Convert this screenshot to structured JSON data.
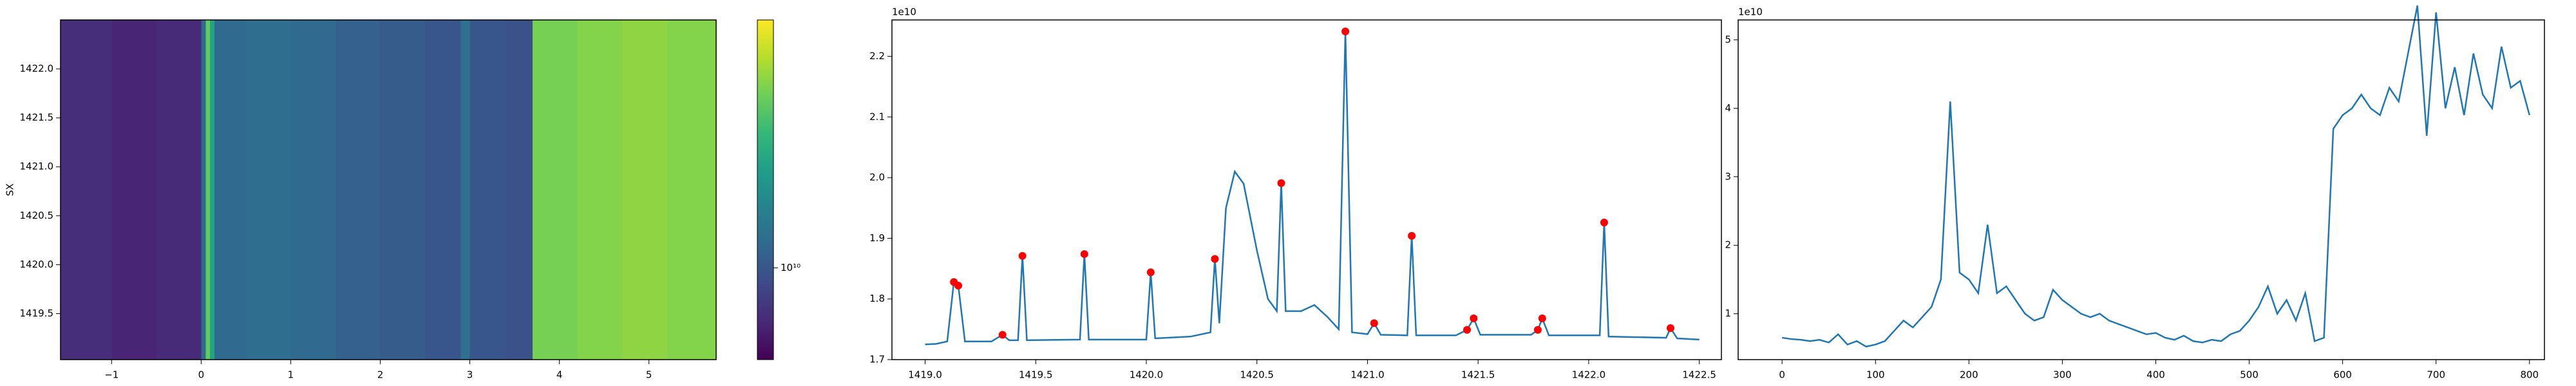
{
  "chart_data": [
    {
      "type": "heatmap",
      "y_label": "SX",
      "x_edges": [
        -1.57,
        -1.0,
        -0.5,
        0,
        0.05,
        0.1,
        0.15,
        0.5,
        1.0,
        1.5,
        2.0,
        2.5,
        2.9,
        3.0,
        3.4,
        3.7,
        4.2,
        4.7,
        5.2,
        5.75
      ],
      "values": [
        7000000000.0,
        6500000000.0,
        6800000000.0,
        12000000000.0,
        35000000000.0,
        22000000000.0,
        12000000000.0,
        12500000000.0,
        12000000000.0,
        11000000000.0,
        10500000000.0,
        10000000000.0,
        13000000000.0,
        10000000000.0,
        9500000000.0,
        38000000000.0,
        40000000000.0,
        42000000000.0,
        40000000000.0
      ],
      "xlim": [
        -1.57,
        5.75
      ],
      "xticks": [
        {
          "value": -1,
          "label": "−1"
        },
        0,
        1,
        2,
        3,
        4,
        5
      ],
      "ylim": [
        1419.03,
        1422.5
      ],
      "yticks": [
        {
          "value": 1419.5,
          "label": "1419.5"
        },
        {
          "value": 1420.0,
          "label": "1420.0"
        },
        {
          "value": 1420.5,
          "label": "1420.5"
        },
        {
          "value": 1421.0,
          "label": "1421.0"
        },
        {
          "value": 1421.5,
          "label": "1421.5"
        },
        {
          "value": 1422.0,
          "label": "1422.0"
        }
      ],
      "colormap": "viridis",
      "colorbar": {
        "log": true,
        "lim": [
          5000000000.0,
          65000000000.0
        ],
        "ticks": [
          {
            "value": 10000000000.0,
            "label": "10¹⁰"
          }
        ]
      }
    },
    {
      "type": "line",
      "color": "#1f77b4",
      "x": [
        1419.0,
        1419.05,
        1419.1,
        1419.13,
        1419.15,
        1419.18,
        1419.3,
        1419.35,
        1419.38,
        1419.42,
        1419.44,
        1419.46,
        1419.7,
        1419.72,
        1419.74,
        1420.0,
        1420.02,
        1420.04,
        1420.2,
        1420.29,
        1420.31,
        1420.33,
        1420.36,
        1420.4,
        1420.44,
        1420.5,
        1420.55,
        1420.59,
        1420.61,
        1420.63,
        1420.7,
        1420.76,
        1420.82,
        1420.87,
        1420.9,
        1420.93,
        1421.0,
        1421.03,
        1421.06,
        1421.18,
        1421.2,
        1421.22,
        1421.4,
        1421.45,
        1421.48,
        1421.51,
        1421.74,
        1421.77,
        1421.79,
        1421.82,
        1422.05,
        1422.07,
        1422.09,
        1422.35,
        1422.37,
        1422.4,
        1422.5
      ],
      "values": [
        17250000000.0,
        17260000000.0,
        17300000000.0,
        18280000000.0,
        18220000000.0,
        17300000000.0,
        17300000000.0,
        17410000000.0,
        17320000000.0,
        17320000000.0,
        18710000000.0,
        17320000000.0,
        17330000000.0,
        18740000000.0,
        17330000000.0,
        17330000000.0,
        18440000000.0,
        17350000000.0,
        17380000000.0,
        17450000000.0,
        18660000000.0,
        17600000000.0,
        19500000000.0,
        20100000000.0,
        19900000000.0,
        18800000000.0,
        18000000000.0,
        17800000000.0,
        19910000000.0,
        17800000000.0,
        17800000000.0,
        17900000000.0,
        17700000000.0,
        17500000000.0,
        22410000000.0,
        17450000000.0,
        17420000000.0,
        17600000000.0,
        17410000000.0,
        17400000000.0,
        19040000000.0,
        17400000000.0,
        17400000000.0,
        17490000000.0,
        17680000000.0,
        17410000000.0,
        17410000000.0,
        17490000000.0,
        17680000000.0,
        17400000000.0,
        17400000000.0,
        19260000000.0,
        17380000000.0,
        17360000000.0,
        17520000000.0,
        17350000000.0,
        17330000000.0
      ],
      "markers": {
        "color": "red",
        "x": [
          1419.13,
          1419.15,
          1419.35,
          1419.44,
          1419.72,
          1420.02,
          1420.31,
          1420.61,
          1420.9,
          1421.03,
          1421.2,
          1421.45,
          1421.48,
          1421.77,
          1421.79,
          1422.07,
          1422.37
        ],
        "values": [
          18280000000.0,
          18220000000.0,
          17410000000.0,
          18710000000.0,
          18740000000.0,
          18440000000.0,
          18660000000.0,
          19910000000.0,
          22410000000.0,
          17600000000.0,
          19040000000.0,
          17490000000.0,
          17680000000.0,
          17490000000.0,
          17680000000.0,
          19260000000.0,
          17520000000.0
        ]
      },
      "xlim": [
        1418.85,
        1422.6
      ],
      "xticks": [
        {
          "value": 1419.0,
          "label": "1419.0"
        },
        {
          "value": 1419.5,
          "label": "1419.5"
        },
        {
          "value": 1420.0,
          "label": "1420.0"
        },
        {
          "value": 1420.5,
          "label": "1420.5"
        },
        {
          "value": 1421.0,
          "label": "1421.0"
        },
        {
          "value": 1421.5,
          "label": "1421.5"
        },
        {
          "value": 1422.0,
          "label": "1422.0"
        },
        {
          "value": 1422.5,
          "label": "1422.5"
        }
      ],
      "ylim": [
        17000000000.0,
        22600000000.0
      ],
      "yticks": [
        {
          "value": 17000000000.0,
          "label": "1.7"
        },
        {
          "value": 18000000000.0,
          "label": "1.8"
        },
        {
          "value": 19000000000.0,
          "label": "1.9"
        },
        {
          "value": 20000000000.0,
          "label": "2.0"
        },
        {
          "value": 21000000000.0,
          "label": "2.1"
        },
        {
          "value": 22000000000.0,
          "label": "2.2"
        }
      ],
      "y_offset_label": "1e10"
    },
    {
      "type": "line",
      "color": "#1f77b4",
      "x": [
        0,
        10,
        20,
        30,
        40,
        50,
        60,
        70,
        80,
        90,
        100,
        110,
        120,
        130,
        140,
        150,
        160,
        170,
        180,
        190,
        200,
        210,
        220,
        230,
        240,
        250,
        260,
        270,
        280,
        290,
        300,
        310,
        320,
        330,
        340,
        350,
        360,
        370,
        380,
        390,
        400,
        410,
        420,
        430,
        440,
        450,
        460,
        470,
        480,
        490,
        500,
        510,
        520,
        530,
        540,
        550,
        560,
        570,
        580,
        590,
        600,
        610,
        620,
        630,
        640,
        650,
        660,
        670,
        680,
        690,
        700,
        710,
        720,
        730,
        740,
        750,
        760,
        770,
        780,
        790,
        800
      ],
      "values": [
        6500000000.0,
        6300000000.0,
        6200000000.0,
        6000000000.0,
        6200000000.0,
        5800000000.0,
        7000000000.0,
        5500000000.0,
        6000000000.0,
        5200000000.0,
        5500000000.0,
        6000000000.0,
        7500000000.0,
        9000000000.0,
        8000000000.0,
        9500000000.0,
        11000000000.0,
        15000000000.0,
        41000000000.0,
        16000000000.0,
        15000000000.0,
        13000000000.0,
        23000000000.0,
        13000000000.0,
        14000000000.0,
        12000000000.0,
        10000000000.0,
        9000000000.0,
        9500000000.0,
        13500000000.0,
        12000000000.0,
        11000000000.0,
        10000000000.0,
        9500000000.0,
        10000000000.0,
        9000000000.0,
        8500000000.0,
        8000000000.0,
        7500000000.0,
        7000000000.0,
        7200000000.0,
        6500000000.0,
        6200000000.0,
        6800000000.0,
        6000000000.0,
        5800000000.0,
        6200000000.0,
        6000000000.0,
        7000000000.0,
        7500000000.0,
        9000000000.0,
        11000000000.0,
        14000000000.0,
        10000000000.0,
        12000000000.0,
        9000000000.0,
        13000000000.0,
        6000000000.0,
        6500000000.0,
        37000000000.0,
        39000000000.0,
        40000000000.0,
        42000000000.0,
        40000000000.0,
        39000000000.0,
        43000000000.0,
        41000000000.0,
        48000000000.0,
        55000000000.0,
        36000000000.0,
        54000000000.0,
        40000000000.0,
        46000000000.0,
        39000000000.0,
        48000000000.0,
        42000000000.0,
        40000000000.0,
        49000000000.0,
        43000000000.0,
        44000000000.0,
        39000000000.0
      ],
      "xlim": [
        -47,
        816
      ],
      "xticks": [
        0,
        100,
        200,
        300,
        400,
        500,
        600,
        700,
        800
      ],
      "ylim": [
        3300000000.0,
        52900000000.0
      ],
      "yticks": [
        {
          "value": 10000000000.0,
          "label": "1"
        },
        {
          "value": 20000000000.0,
          "label": "2"
        },
        {
          "value": 30000000000.0,
          "label": "3"
        },
        {
          "value": 40000000000.0,
          "label": "4"
        },
        {
          "value": 50000000000.0,
          "label": "5"
        }
      ],
      "y_offset_label": "1e10"
    }
  ]
}
